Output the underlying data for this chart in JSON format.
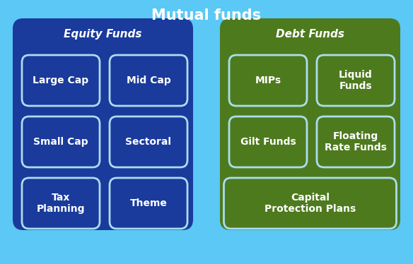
{
  "title": "Mutual funds",
  "bg_color": "#5BC8F5",
  "equity_bg": "#1A3A9C",
  "debt_bg": "#4E7A1E",
  "box_border_color": "#AADEEE",
  "text_color": "#FFFFFF",
  "title_fontsize": 15,
  "header_fontsize": 11,
  "item_fontsize": 10,
  "equity_label": "Equity Funds",
  "debt_label": "Debt Funds",
  "equity_items": [
    [
      "Large Cap",
      "Mid Cap"
    ],
    [
      "Small Cap",
      "Sectoral"
    ],
    [
      "Tax\nPlanning",
      "Theme"
    ]
  ],
  "debt_items_row1": [
    "MIPs",
    "Liquid\nFunds"
  ],
  "debt_items_row2": [
    "Gilt Funds",
    "Floating\nRate Funds"
  ],
  "debt_items_row3": "Capital\nProtection Plans"
}
